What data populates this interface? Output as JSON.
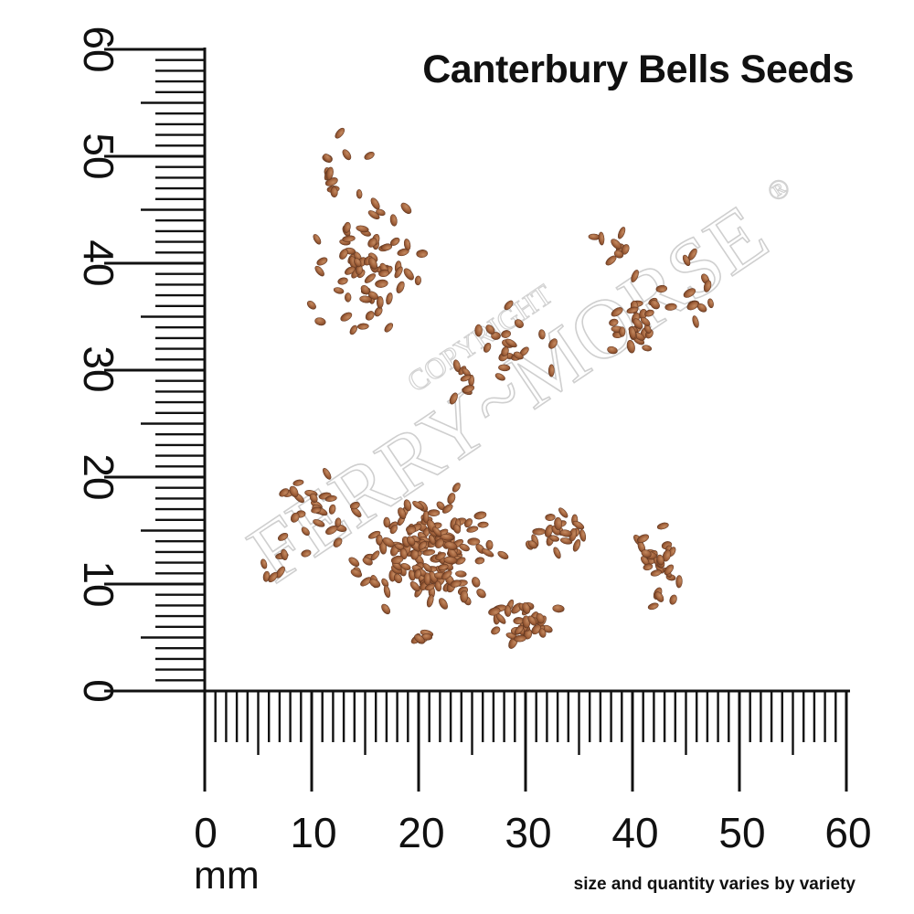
{
  "title": "Canterbury Bells Seeds",
  "footnote": "size and quantity varies by variety",
  "ruler": {
    "unit": "mm",
    "x_tick_labels": [
      "0",
      "10",
      "20",
      "30",
      "40",
      "50",
      "60"
    ],
    "y_tick_labels": [
      "0",
      "10",
      "20",
      "30",
      "40",
      "50",
      "60"
    ]
  },
  "watermark": {
    "brand": "FERRY~MORSE",
    "copyright": "COPYRIGHT",
    "registered": "®"
  },
  "colors": {
    "seed": "#a0603a",
    "ruler": "#111111",
    "watermark": "#cfcfcf"
  },
  "subject": "seed"
}
